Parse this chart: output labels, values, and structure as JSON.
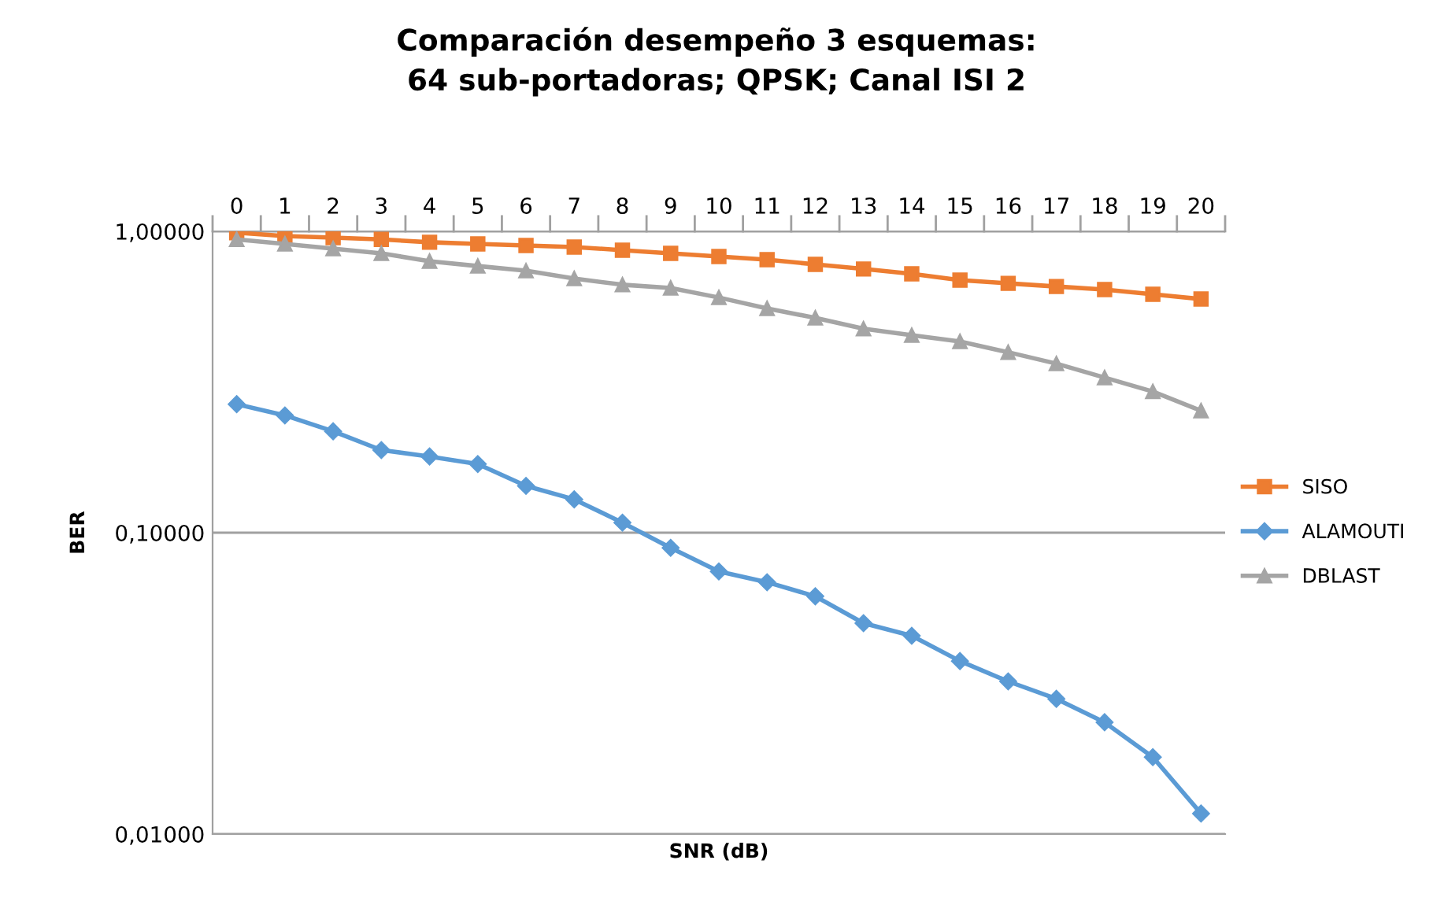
{
  "chart_data": {
    "type": "line",
    "title": "Comparación desempeño 3 esquemas:\n64 sub-portadoras; QPSK; Canal ISI 2",
    "xlabel": "SNR (dB)",
    "ylabel": "BER",
    "categories": [
      "0",
      "1",
      "2",
      "3",
      "4",
      "5",
      "6",
      "7",
      "8",
      "9",
      "10",
      "11",
      "12",
      "13",
      "14",
      "15",
      "16",
      "17",
      "18",
      "19",
      "20"
    ],
    "log": "y",
    "ylim": [
      0.01,
      1
    ],
    "yticks": [
      {
        "value": 0.01,
        "label": "0,01000"
      },
      {
        "value": 0.1,
        "label": "0,10000"
      },
      {
        "value": 1,
        "label": "1,00000"
      }
    ],
    "grid": "y",
    "legend": "right",
    "line_style": "solid",
    "series": [
      {
        "name": "SISO",
        "color": "#ed7d31",
        "marker": "square",
        "values": [
          0.99,
          0.965,
          0.953,
          0.94,
          0.92,
          0.908,
          0.897,
          0.887,
          0.866,
          0.845,
          0.825,
          0.805,
          0.777,
          0.75,
          0.723,
          0.689,
          0.672,
          0.656,
          0.641,
          0.618,
          0.596
        ]
      },
      {
        "name": "ALAMOUTI",
        "color": "#5b9bd5",
        "marker": "diamond",
        "values": [
          0.267,
          0.245,
          0.217,
          0.188,
          0.179,
          0.169,
          0.143,
          0.129,
          0.108,
          0.0891,
          0.0744,
          0.0685,
          0.0615,
          0.0501,
          0.0455,
          0.0375,
          0.0321,
          0.0281,
          0.0235,
          0.018,
          0.0117
        ]
      },
      {
        "name": "DBLAST",
        "color": "#a5a5a5",
        "marker": "triangle",
        "values": [
          0.94,
          0.908,
          0.876,
          0.845,
          0.796,
          0.767,
          0.74,
          0.697,
          0.665,
          0.649,
          0.603,
          0.555,
          0.516,
          0.475,
          0.452,
          0.431,
          0.397,
          0.364,
          0.327,
          0.294,
          0.254
        ]
      }
    ]
  }
}
